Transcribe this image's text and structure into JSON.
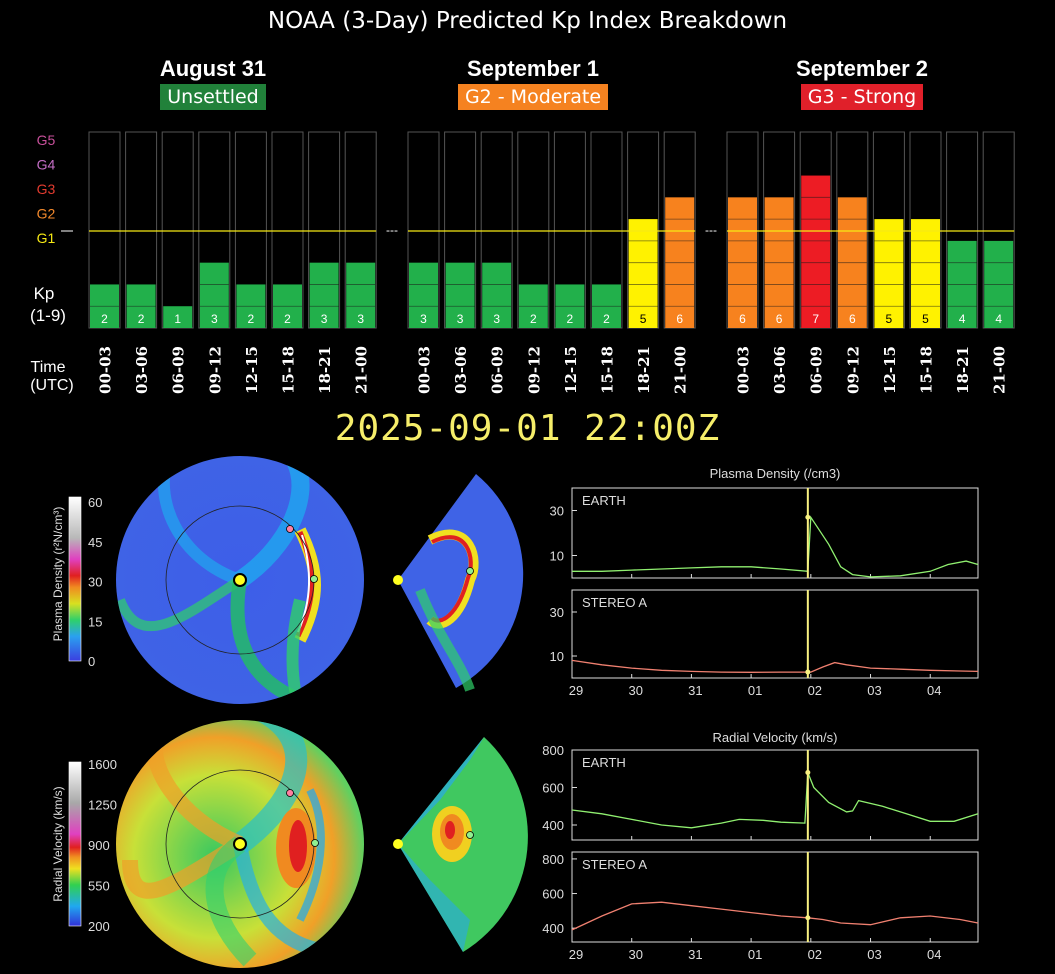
{
  "title": "NOAA (3-Day) Predicted Kp Index Breakdown",
  "timestamp": "2025-09-01 22:00Z",
  "days": [
    {
      "name": "August 31",
      "level": "Unsettled",
      "badge_color": "#21813a"
    },
    {
      "name": "September 1",
      "level": "G2 - Moderate",
      "badge_color": "#f58220"
    },
    {
      "name": "September 2",
      "level": "G3 - Strong",
      "badge_color": "#e0202a"
    }
  ],
  "scale_labels": [
    {
      "text": "G5",
      "color": "#c8509b"
    },
    {
      "text": "G4",
      "color": "#c46ec6"
    },
    {
      "text": "G3",
      "color": "#e33b2f"
    },
    {
      "text": "G2",
      "color": "#f58a2c"
    },
    {
      "text": "G1",
      "color": "#f7ea14"
    }
  ],
  "kp_label": "Kp",
  "kp_range": "(1-9)",
  "time_label": "Time",
  "utc_label": "(UTC)",
  "separator": "---",
  "kp_colors": {
    "quiet": "#22b04b",
    "g1": "#fff200",
    "g2": "#f7821e",
    "g3": "#ed1c24"
  },
  "chart_data": [
    {
      "type": "bar",
      "title": "NOAA (3-Day) Predicted Kp Index Breakdown",
      "ylabel": "Kp (1-9)",
      "xlabel": "Time (UTC)",
      "ylim": [
        0,
        9
      ],
      "categories": [
        "00-03",
        "03-06",
        "06-09",
        "09-12",
        "12-15",
        "15-18",
        "18-21",
        "21-00"
      ],
      "series": [
        {
          "name": "August 31",
          "values": [
            2,
            2,
            1,
            3,
            2,
            2,
            3,
            3
          ]
        },
        {
          "name": "September 1",
          "values": [
            3,
            3,
            3,
            2,
            2,
            2,
            5,
            6
          ]
        },
        {
          "name": "September 2",
          "values": [
            6,
            6,
            7,
            6,
            5,
            5,
            4,
            4
          ]
        }
      ]
    },
    {
      "type": "line",
      "title": "Plasma Density (/cm3)",
      "x_ticks": [
        "29",
        "30",
        "31",
        "01",
        "02",
        "03",
        "04"
      ],
      "panels": [
        {
          "name": "EARTH",
          "y_ticks": [
            10,
            30
          ],
          "ylim": [
            0,
            40
          ],
          "x": [
            0,
            0.5,
            1,
            1.5,
            2,
            2.5,
            3,
            3.5,
            3.95,
            4.0,
            4.1,
            4.3,
            4.5,
            4.7,
            5,
            5.5,
            6,
            6.3,
            6.6,
            6.8
          ],
          "y": [
            3,
            3,
            3.5,
            4,
            4.5,
            5,
            5,
            4,
            3,
            27,
            23,
            15,
            5,
            1.5,
            0.5,
            1,
            3,
            6,
            7.5,
            6
          ]
        },
        {
          "name": "STEREO A",
          "y_ticks": [
            10,
            30
          ],
          "ylim": [
            0,
            40
          ],
          "x": [
            0,
            0.5,
            1,
            1.5,
            2,
            2.5,
            3,
            3.5,
            4,
            4.2,
            4.4,
            4.6,
            5,
            5.5,
            6,
            6.5,
            6.8
          ],
          "y": [
            8,
            6,
            4.5,
            3.5,
            3,
            2.7,
            2.6,
            2.7,
            2.7,
            5,
            7,
            6,
            4.5,
            4,
            3.5,
            3.2,
            3
          ]
        }
      ],
      "current_marker": "2025-09-01 22:00Z"
    },
    {
      "type": "line",
      "title": "Radial Velocity (km/s)",
      "x_ticks": [
        "29",
        "30",
        "31",
        "01",
        "02",
        "03",
        "04"
      ],
      "panels": [
        {
          "name": "EARTH",
          "y_ticks": [
            400,
            600,
            800
          ],
          "ylim": [
            320,
            800
          ],
          "x": [
            0,
            0.5,
            1,
            1.5,
            2,
            2.5,
            2.8,
            3.2,
            3.5,
            3.9,
            3.95,
            4.05,
            4.3,
            4.6,
            4.7,
            4.8,
            5.2,
            5.6,
            6,
            6.4,
            6.8
          ],
          "y": [
            480,
            460,
            430,
            400,
            385,
            410,
            430,
            425,
            415,
            410,
            680,
            600,
            520,
            470,
            475,
            530,
            500,
            460,
            420,
            420,
            460
          ]
        },
        {
          "name": "STEREO A",
          "y_ticks": [
            400,
            600,
            800
          ],
          "ylim": [
            320,
            840
          ],
          "x": [
            0,
            0.5,
            1,
            1.5,
            2,
            2.5,
            3,
            3.5,
            3.95,
            4.2,
            4.5,
            5,
            5.5,
            6,
            6.5,
            6.8
          ],
          "y": [
            390,
            470,
            540,
            550,
            530,
            510,
            490,
            470,
            460,
            450,
            430,
            420,
            460,
            470,
            450,
            430
          ]
        }
      ]
    }
  ],
  "enlil": {
    "density_colorbar": {
      "label": "Plasma Density (r²N/cm³)",
      "ticks": [
        "60",
        "45",
        "30",
        "15",
        "0"
      ]
    },
    "velocity_colorbar": {
      "label": "Radial Velocity (km/s)",
      "ticks": [
        "1600",
        "1250",
        "900",
        "550",
        "200"
      ]
    }
  }
}
